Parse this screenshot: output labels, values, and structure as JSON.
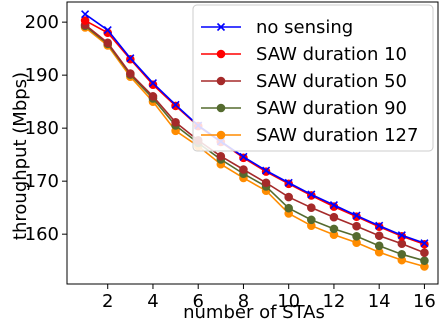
{
  "chart_data": {
    "type": "line",
    "xlabel": "number of STAs",
    "ylabel": "throughput (Mbps)",
    "xlim": [
      0.2,
      16.6
    ],
    "ylim": [
      150.6,
      203.8
    ],
    "xticks": [
      2,
      4,
      6,
      8,
      10,
      12,
      14,
      16
    ],
    "yticks": [
      160,
      170,
      180,
      190,
      200
    ],
    "grid": false,
    "legend_position": "top-right",
    "x": [
      1,
      2,
      3,
      4,
      5,
      6,
      7,
      8,
      9,
      10,
      11,
      12,
      13,
      14,
      15,
      16
    ],
    "series": [
      {
        "name": "no sensing",
        "color": "#0000ff",
        "marker": "x",
        "values": [
          201.5,
          198.5,
          193.2,
          188.5,
          184.4,
          180.5,
          177.5,
          174.6,
          172.0,
          169.7,
          167.5,
          165.5,
          163.5,
          161.6,
          159.8,
          158.3
        ]
      },
      {
        "name": "SAW duration 10",
        "color": "#ff0000",
        "marker": "circle",
        "values": [
          200.3,
          198.0,
          193.0,
          188.2,
          184.2,
          180.4,
          177.4,
          174.4,
          171.8,
          169.5,
          167.3,
          165.2,
          163.3,
          161.4,
          159.6,
          158.1
        ]
      },
      {
        "name": "SAW duration 50",
        "color": "#a52a2a",
        "marker": "circle",
        "values": [
          199.5,
          196.1,
          190.3,
          186.0,
          181.1,
          177.7,
          174.7,
          172.2,
          169.7,
          167.0,
          165.0,
          163.2,
          161.5,
          159.7,
          158.2,
          156.5
        ]
      },
      {
        "name": "SAW duration 90",
        "color": "#556b2f",
        "marker": "circle",
        "values": [
          199.3,
          195.9,
          190.1,
          185.6,
          180.5,
          177.2,
          174.1,
          171.4,
          169.0,
          164.9,
          162.7,
          161.0,
          159.6,
          157.8,
          156.2,
          155.0
        ]
      },
      {
        "name": "SAW duration 127",
        "color": "#ff8c00",
        "marker": "circle",
        "values": [
          199.0,
          195.6,
          189.7,
          185.0,
          179.5,
          176.6,
          173.2,
          170.6,
          168.2,
          163.9,
          161.6,
          159.9,
          158.4,
          156.6,
          155.1,
          153.9
        ]
      }
    ]
  }
}
